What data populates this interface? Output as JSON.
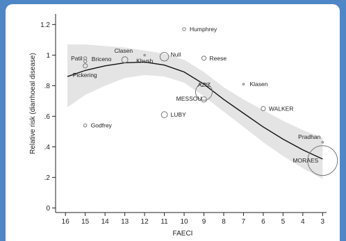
{
  "chart_data": {
    "type": "scatter",
    "xlabel": "FAECI",
    "ylabel": "Relative risk (diarrhoeal disease)",
    "x_reversed": true,
    "xlim": [
      16.5,
      2.8
    ],
    "ylim": [
      -0.03,
      1.27
    ],
    "x_ticks": [
      16,
      15,
      14,
      13,
      12,
      11,
      10,
      9,
      8,
      7,
      6,
      5,
      4,
      3
    ],
    "y_ticks": [
      0,
      0.2,
      0.4,
      0.6,
      0.8,
      1,
      1.2
    ],
    "y_tick_labels": [
      "0",
      ".2",
      ".4",
      ".6",
      ".8",
      "1",
      "1.2"
    ],
    "grid": false,
    "fit_curve": [
      [
        15.9,
        0.86
      ],
      [
        15,
        0.9
      ],
      [
        14,
        0.93
      ],
      [
        13,
        0.95
      ],
      [
        12,
        0.955
      ],
      [
        11,
        0.935
      ],
      [
        10,
        0.89
      ],
      [
        9,
        0.81
      ],
      [
        8,
        0.71
      ],
      [
        7,
        0.62
      ],
      [
        6,
        0.53
      ],
      [
        5,
        0.45
      ],
      [
        4,
        0.38
      ],
      [
        3,
        0.32
      ]
    ],
    "confidence_band_upper": [
      [
        15.9,
        1.07
      ],
      [
        15,
        1.07
      ],
      [
        14,
        1.06
      ],
      [
        13,
        1.05
      ],
      [
        12,
        1.03
      ],
      [
        11,
        1.01
      ],
      [
        10,
        0.97
      ],
      [
        9,
        0.89
      ],
      [
        8,
        0.79
      ],
      [
        7,
        0.71
      ],
      [
        6,
        0.64
      ],
      [
        5,
        0.57
      ],
      [
        4,
        0.51
      ],
      [
        3,
        0.46
      ]
    ],
    "confidence_band_lower": [
      [
        15.9,
        0.66
      ],
      [
        15,
        0.74
      ],
      [
        14,
        0.8
      ],
      [
        13,
        0.85
      ],
      [
        12,
        0.87
      ],
      [
        11,
        0.86
      ],
      [
        10,
        0.82
      ],
      [
        9,
        0.73
      ],
      [
        8,
        0.63
      ],
      [
        7,
        0.53
      ],
      [
        6,
        0.43
      ],
      [
        5,
        0.34
      ],
      [
        4,
        0.26
      ],
      [
        3,
        0.19
      ]
    ],
    "points": [
      {
        "label": "Humphrey",
        "x": 10,
        "y": 1.17,
        "weight": 1
      },
      {
        "label": "Patil",
        "x": 15,
        "y": 0.98,
        "weight": 1
      },
      {
        "label": "Briceno",
        "x": 15,
        "y": 0.96,
        "weight": 1
      },
      {
        "label": "Pickering",
        "x": 15,
        "y": 0.93,
        "weight": 2
      },
      {
        "label": "Clasen",
        "x": 13,
        "y": 0.97,
        "weight": 4
      },
      {
        "label": "Khush",
        "x": 12,
        "y": 1.0,
        "weight": 0.3
      },
      {
        "label": "Null",
        "x": 11,
        "y": 0.99,
        "weight": 8
      },
      {
        "label": "Reese",
        "x": 9,
        "y": 0.98,
        "weight": 2
      },
      {
        "label": "Klasen",
        "x": 7,
        "y": 0.81,
        "weight": 0.3
      },
      {
        "label": "AZIZ",
        "x": 9,
        "y": 0.76,
        "weight": 30
      },
      {
        "label": "MESSOU",
        "x": 9,
        "y": 0.71,
        "weight": 3
      },
      {
        "label": "WALKER",
        "x": 6,
        "y": 0.65,
        "weight": 2
      },
      {
        "label": "LUBY",
        "x": 11,
        "y": 0.61,
        "weight": 4
      },
      {
        "label": "Godfrey",
        "x": 15,
        "y": 0.54,
        "weight": 1
      },
      {
        "label": "Pradhan",
        "x": 3,
        "y": 0.43,
        "weight": 0.3
      },
      {
        "label": "MORAES",
        "x": 3,
        "y": 0.31,
        "weight": 95
      }
    ]
  }
}
